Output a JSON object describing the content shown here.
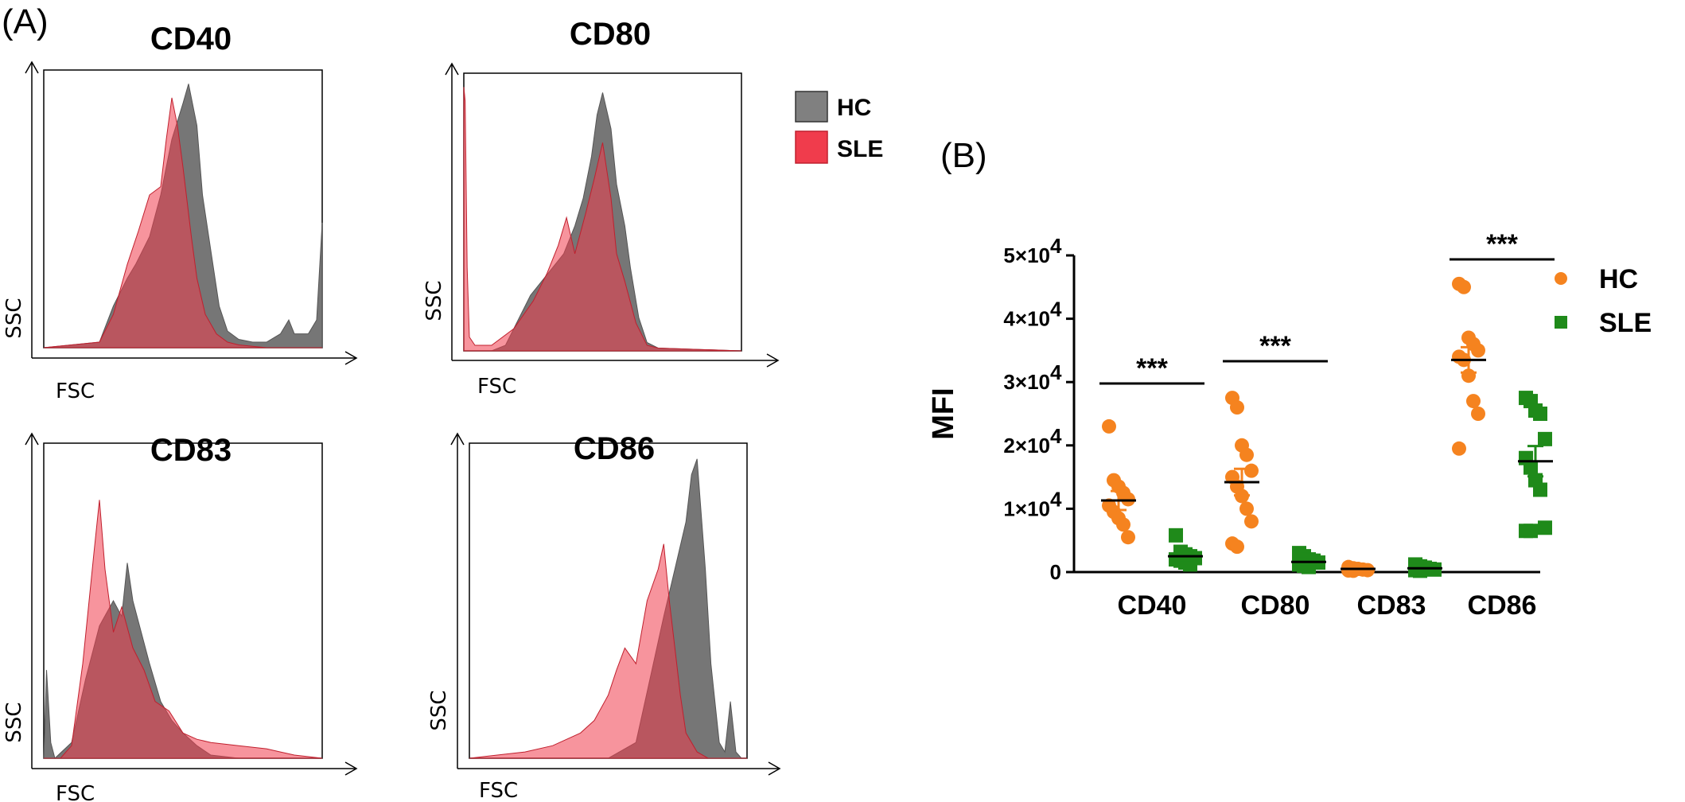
{
  "panels": {
    "a_label": "(A)",
    "b_label": "(B)"
  },
  "legend_a": {
    "items": [
      {
        "name": "HC",
        "color": "#808080"
      },
      {
        "name": "SLE",
        "color": "#f03c4c"
      }
    ]
  },
  "chart_data": [
    {
      "type": "area",
      "title": "CD40",
      "xlabel": "FSC",
      "ylabel": "SSC",
      "series": [
        {
          "name": "HC",
          "color": "#6f6f6f",
          "x": [
            0,
            0.1,
            0.2,
            0.25,
            0.3,
            0.33,
            0.38,
            0.42,
            0.46,
            0.5,
            0.52,
            0.55,
            0.57,
            0.6,
            0.63,
            0.66,
            0.7,
            0.75,
            0.8,
            0.85,
            0.88,
            0.9,
            0.95,
            0.98,
            1.0
          ],
          "y": [
            0,
            0.01,
            0.02,
            0.15,
            0.25,
            0.3,
            0.4,
            0.55,
            0.75,
            0.88,
            0.95,
            0.8,
            0.55,
            0.35,
            0.15,
            0.06,
            0.03,
            0.02,
            0.02,
            0.05,
            0.1,
            0.05,
            0.05,
            0.1,
            0.45
          ]
        },
        {
          "name": "SLE",
          "color": "#f03c4c",
          "x": [
            0,
            0.1,
            0.2,
            0.25,
            0.3,
            0.34,
            0.38,
            0.42,
            0.44,
            0.46,
            0.48,
            0.5,
            0.53,
            0.55,
            0.58,
            0.62,
            0.66,
            0.7,
            0.8,
            1.0
          ],
          "y": [
            0,
            0.01,
            0.02,
            0.12,
            0.3,
            0.42,
            0.55,
            0.58,
            0.75,
            0.9,
            0.8,
            0.65,
            0.4,
            0.25,
            0.12,
            0.05,
            0.02,
            0.01,
            0.0,
            0.0
          ]
        }
      ]
    },
    {
      "type": "area",
      "title": "CD80",
      "xlabel": "FSC",
      "ylabel": "SSC",
      "series": [
        {
          "name": "HC",
          "color": "#6f6f6f",
          "x": [
            0,
            0.05,
            0.1,
            0.15,
            0.2,
            0.24,
            0.28,
            0.32,
            0.36,
            0.4,
            0.43,
            0.46,
            0.48,
            0.5,
            0.53,
            0.55,
            0.58,
            0.6,
            0.63,
            0.66,
            0.7,
            1.0
          ],
          "y": [
            0,
            0.0,
            0.0,
            0.02,
            0.12,
            0.2,
            0.25,
            0.3,
            0.35,
            0.45,
            0.55,
            0.7,
            0.85,
            0.93,
            0.8,
            0.6,
            0.45,
            0.3,
            0.12,
            0.03,
            0.01,
            0.0
          ]
        },
        {
          "name": "SLE",
          "color": "#f03c4c",
          "x": [
            0,
            0.005,
            0.012,
            0.02,
            0.04,
            0.1,
            0.18,
            0.25,
            0.3,
            0.34,
            0.37,
            0.4,
            0.44,
            0.47,
            0.5,
            0.53,
            0.55,
            0.58,
            0.62,
            0.66,
            0.7,
            1.0
          ],
          "y": [
            0.95,
            0.9,
            0.3,
            0.05,
            0.02,
            0.02,
            0.08,
            0.18,
            0.28,
            0.38,
            0.48,
            0.35,
            0.5,
            0.62,
            0.75,
            0.55,
            0.35,
            0.25,
            0.1,
            0.02,
            0.01,
            0.0
          ]
        }
      ]
    },
    {
      "type": "area",
      "title": "CD83",
      "xlabel": "FSC",
      "ylabel": "SSC",
      "series": [
        {
          "name": "HC",
          "color": "#6f6f6f",
          "x": [
            0,
            0.01,
            0.025,
            0.04,
            0.1,
            0.15,
            0.2,
            0.25,
            0.28,
            0.3,
            0.32,
            0.35,
            0.38,
            0.42,
            0.46,
            0.5,
            0.55,
            0.6,
            0.7,
            1.0
          ],
          "y": [
            0,
            0.28,
            0.05,
            0.0,
            0.05,
            0.25,
            0.42,
            0.5,
            0.45,
            0.62,
            0.5,
            0.4,
            0.3,
            0.18,
            0.12,
            0.08,
            0.04,
            0.01,
            0.0,
            0.0
          ]
        },
        {
          "name": "SLE",
          "color": "#f03c4c",
          "x": [
            0,
            0.06,
            0.1,
            0.14,
            0.18,
            0.2,
            0.22,
            0.25,
            0.28,
            0.32,
            0.36,
            0.4,
            0.45,
            0.5,
            0.55,
            0.6,
            0.7,
            0.8,
            0.85,
            0.9,
            1.0
          ],
          "y": [
            0,
            0.0,
            0.04,
            0.3,
            0.65,
            0.82,
            0.6,
            0.4,
            0.48,
            0.35,
            0.28,
            0.18,
            0.15,
            0.08,
            0.06,
            0.05,
            0.04,
            0.03,
            0.02,
            0.01,
            0.0
          ]
        }
      ]
    },
    {
      "type": "area",
      "title": "CD86",
      "xlabel": "FSC",
      "ylabel": "SSC",
      "series": [
        {
          "name": "HC",
          "color": "#6f6f6f",
          "x": [
            0,
            0.3,
            0.5,
            0.6,
            0.65,
            0.7,
            0.74,
            0.78,
            0.8,
            0.82,
            0.85,
            0.87,
            0.9,
            0.92,
            0.94,
            0.96,
            0.98,
            1.0
          ],
          "y": [
            0,
            0.0,
            0.0,
            0.05,
            0.25,
            0.45,
            0.6,
            0.75,
            0.9,
            0.95,
            0.6,
            0.3,
            0.05,
            0.02,
            0.18,
            0.02,
            0.0,
            0.0
          ]
        },
        {
          "name": "SLE",
          "color": "#f03c4c",
          "x": [
            0,
            0.2,
            0.3,
            0.4,
            0.45,
            0.5,
            0.53,
            0.56,
            0.6,
            0.64,
            0.68,
            0.7,
            0.72,
            0.74,
            0.76,
            0.78,
            0.82,
            0.86,
            1.0
          ],
          "y": [
            0,
            0.02,
            0.04,
            0.08,
            0.12,
            0.2,
            0.28,
            0.35,
            0.3,
            0.5,
            0.6,
            0.68,
            0.5,
            0.35,
            0.2,
            0.08,
            0.02,
            0.0,
            0.0
          ]
        }
      ]
    },
    {
      "type": "scatter",
      "title": "",
      "xlabel": "",
      "ylabel": "MFI",
      "ylim": [
        0,
        50000
      ],
      "yticks": [
        0,
        10000,
        20000,
        30000,
        40000,
        50000
      ],
      "ytick_labels": [
        "0",
        "1×10",
        "2×10",
        "3×10",
        "4×10",
        "5×10"
      ],
      "ytick_exponent": "4",
      "categories": [
        "CD40",
        "CD80",
        "CD83",
        "CD86"
      ],
      "significance": [
        "***",
        "***",
        "",
        "***"
      ],
      "legend_position": "top-right",
      "series": [
        {
          "name": "HC",
          "color": "#f5831f",
          "marker": "circle",
          "values": [
            [
              23000,
              14500,
              13500,
              12500,
              11500,
              10500,
              9500,
              8500,
              7500,
              5500
            ],
            [
              27500,
              26000,
              20000,
              18500,
              16000,
              15000,
              13500,
              12000,
              10000,
              8000,
              4500,
              4000
            ],
            [
              800,
              600,
              500,
              400,
              300,
              250,
              200
            ],
            [
              45500,
              45000,
              37000,
              36000,
              35000,
              34000,
              33500,
              31000,
              27000,
              25000,
              19500
            ]
          ],
          "mean": [
            11300,
            14200,
            500,
            33500
          ],
          "sem": [
            1500,
            2100,
            100,
            2000
          ]
        },
        {
          "name": "SLE",
          "color": "#1f8a1a",
          "marker": "square",
          "values": [
            [
              5800,
              3200,
              2800,
              2500,
              2200,
              2000,
              1800,
              1500,
              1200
            ],
            [
              3000,
              2500,
              2000,
              1800,
              1500,
              1200,
              1000,
              800
            ],
            [
              1200,
              900,
              700,
              500,
              400,
              300,
              200
            ],
            [
              27500,
              27000,
              25500,
              25000,
              21000,
              18000,
              16500,
              14500,
              13000,
              7000,
              6500,
              6500
            ]
          ],
          "mean": [
            2500,
            1600,
            600,
            17500
          ],
          "sem": [
            600,
            300,
            100,
            2400
          ]
        }
      ]
    }
  ]
}
